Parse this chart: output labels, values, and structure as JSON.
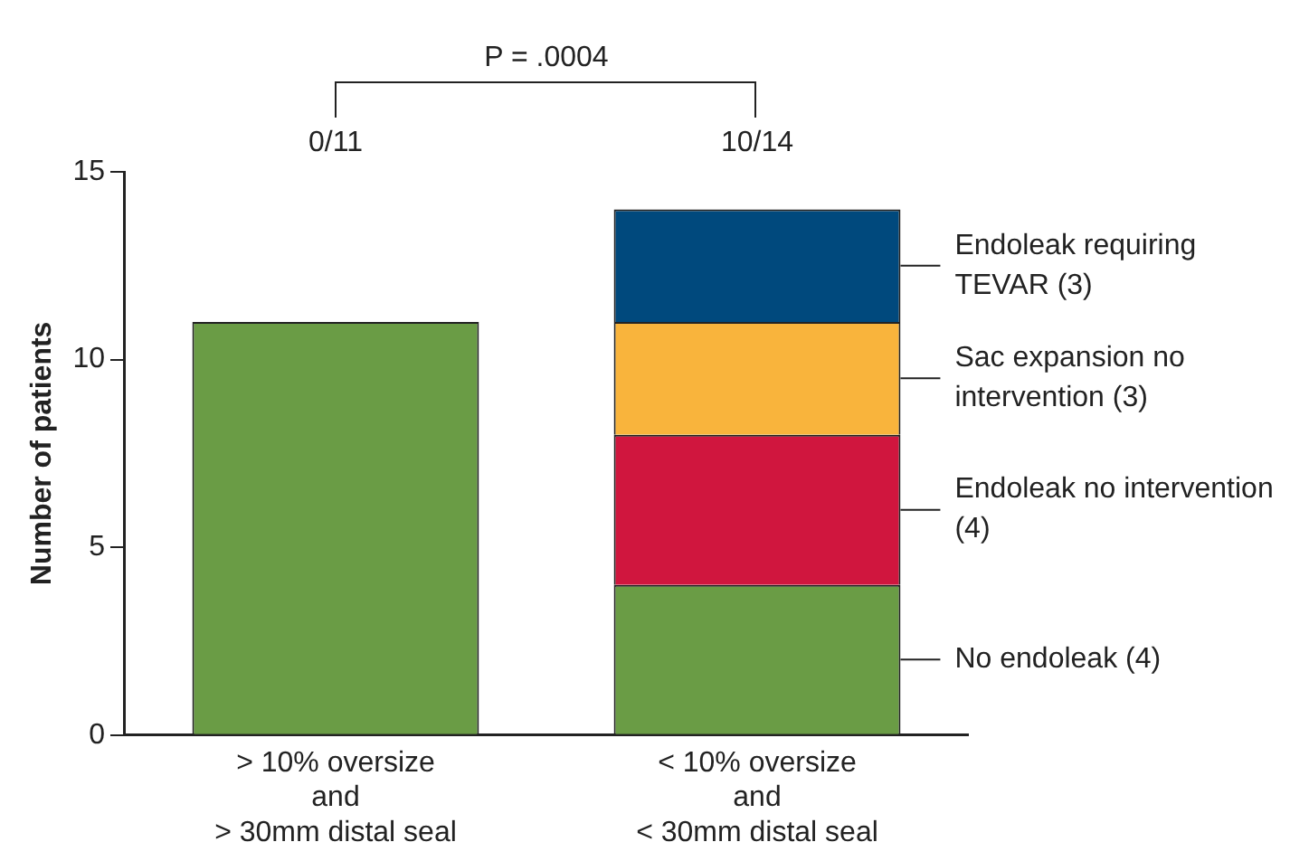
{
  "chart_data": {
    "type": "bar",
    "stacked": true,
    "ylabel": "Number of patients",
    "categories": [
      "> 10% oversize\nand\n> 30mm distal seal",
      "< 10% oversize\nand\n< 30mm distal seal"
    ],
    "series": [
      {
        "name": "No endoleak (4)",
        "color": "#6a9c45",
        "values": [
          11,
          4
        ]
      },
      {
        "name": "Endoleak no intervention (4)",
        "color": "#d0163e",
        "values": [
          0,
          4
        ]
      },
      {
        "name": "Sac expansion no intervention (3)",
        "color": "#f9b43c",
        "values": [
          0,
          3
        ]
      },
      {
        "name": "Endoleak requiring TEVAR (3)",
        "color": "#00497d",
        "values": [
          0,
          3
        ]
      }
    ],
    "ylim": [
      0,
      15
    ],
    "yticks": [
      0,
      5,
      10,
      15
    ],
    "grid": false,
    "legend": false,
    "annotations": [
      "0/11",
      "10/14",
      "P = .0004"
    ]
  }
}
